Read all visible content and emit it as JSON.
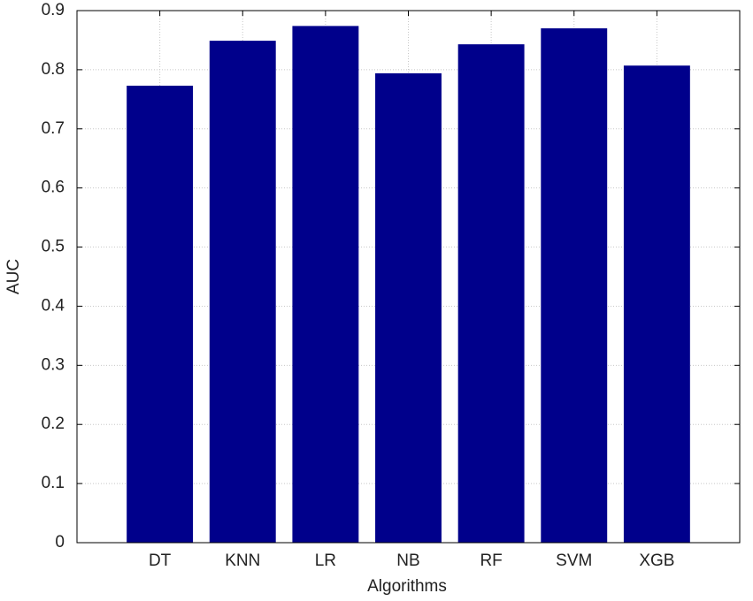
{
  "chart_data": {
    "type": "bar",
    "x_label": "Algorithms",
    "y_label": "AUC",
    "categories": [
      "DT",
      "KNN",
      "LR",
      "NB",
      "RF",
      "SVM",
      "XGB"
    ],
    "values": [
      0.773,
      0.849,
      0.874,
      0.794,
      0.843,
      0.87,
      0.807
    ],
    "color": "#00008b",
    "ylim": [
      0,
      0.9
    ],
    "yticks": [
      0,
      0.1,
      0.2,
      0.3,
      0.4,
      0.5,
      0.6,
      0.7,
      0.8,
      0.9
    ],
    "grid": true
  }
}
